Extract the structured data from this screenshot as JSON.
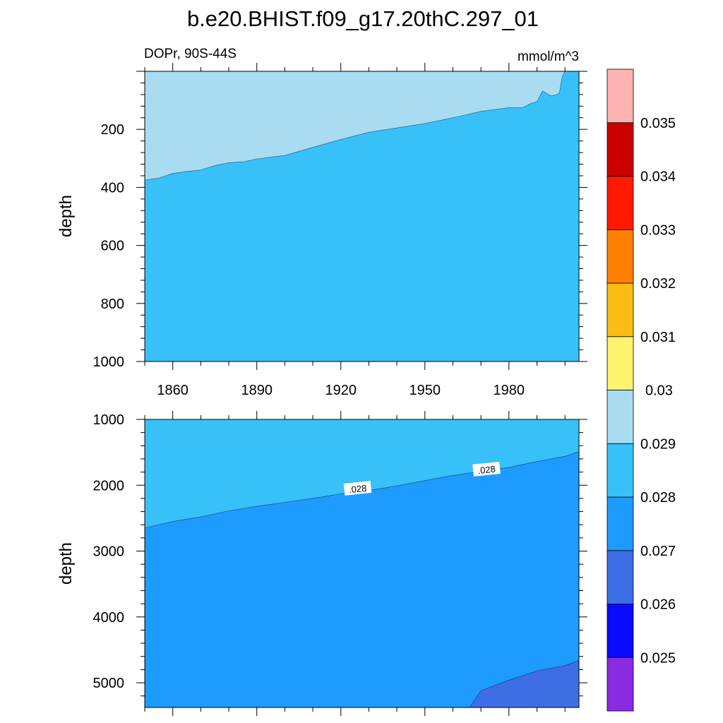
{
  "chart_data": {
    "type": "heatmap",
    "title": "b.e20.BHIST.f09_g17.20thC.297_01",
    "variable_label": "DOPr, 90S-44S",
    "units_label": "mmol/m^3",
    "xlim": [
      1850,
      2005
    ],
    "x_ticks": [
      1860,
      1890,
      1920,
      1950,
      1980
    ],
    "colorbar": {
      "levels": [
        0.025,
        0.026,
        0.027,
        0.028,
        0.029,
        0.03,
        0.031,
        0.032,
        0.033,
        0.034,
        0.035
      ],
      "labels": [
        "0.025",
        "0.026",
        "0.027",
        "0.028",
        "0.029",
        "0.03",
        "0.031",
        "0.032",
        "0.033",
        "0.034",
        "0.035"
      ],
      "colors": [
        "#8a2be2",
        "#0a0aff",
        "#3e6ee6",
        "#1e9bff",
        "#38c0f8",
        "#a9dbf1",
        "#fff26e",
        "#fcbc14",
        "#ff7f00",
        "#ff1a00",
        "#cd0000",
        "#ffb2b2"
      ]
    },
    "panels": [
      {
        "name": "upper",
        "ylabel": "depth",
        "ylim": [
          0,
          1000
        ],
        "y_ticks": [
          200,
          400,
          600,
          800,
          1000
        ],
        "fill_bands": [
          {
            "range": "0.029-0.03",
            "color": "#a9dbf1"
          },
          {
            "range": "0.028-0.029",
            "color": "#38c0f8"
          }
        ],
        "contour_0029": {
          "x": [
            1850,
            1855,
            1860,
            1865,
            1870,
            1875,
            1880,
            1885,
            1890,
            1900,
            1910,
            1920,
            1930,
            1940,
            1950,
            1960,
            1970,
            1980,
            1985,
            1988,
            1990,
            1992,
            1995,
            1997,
            1998,
            1999,
            2000
          ],
          "y": [
            375,
            368,
            352,
            345,
            340,
            325,
            315,
            312,
            302,
            290,
            262,
            235,
            210,
            195,
            180,
            160,
            138,
            125,
            125,
            110,
            105,
            68,
            85,
            80,
            75,
            20,
            0
          ]
        }
      },
      {
        "name": "lower",
        "ylabel": "depth",
        "ylim": [
          1000,
          5375
        ],
        "y_ticks": [
          1000,
          2000,
          3000,
          4000,
          5000
        ],
        "fill_bands": [
          {
            "range": "0.028-0.029",
            "color": "#38c0f8"
          },
          {
            "range": "0.027-0.028",
            "color": "#1e9bff"
          },
          {
            "range": "0.026-0.027",
            "color": "#3e6ee6"
          }
        ],
        "contour_0028": {
          "x": [
            1850,
            1860,
            1870,
            1880,
            1890,
            1900,
            1910,
            1920,
            1930,
            1940,
            1950,
            1960,
            1970,
            1980,
            1990,
            2000,
            2005
          ],
          "y": [
            2650,
            2550,
            2480,
            2390,
            2320,
            2260,
            2200,
            2130,
            2080,
            2010,
            1930,
            1850,
            1790,
            1730,
            1640,
            1560,
            1490
          ]
        },
        "contour_0027": {
          "x": [
            1966,
            1970,
            1980,
            1990,
            2000,
            2005
          ],
          "y": [
            5375,
            5120,
            4960,
            4820,
            4740,
            4660
          ]
        },
        "contour_labels": [
          {
            "text": ".028",
            "x": 1926,
            "y": 2050
          },
          {
            "text": ".028",
            "x": 1972,
            "y": 1760
          }
        ]
      }
    ]
  }
}
